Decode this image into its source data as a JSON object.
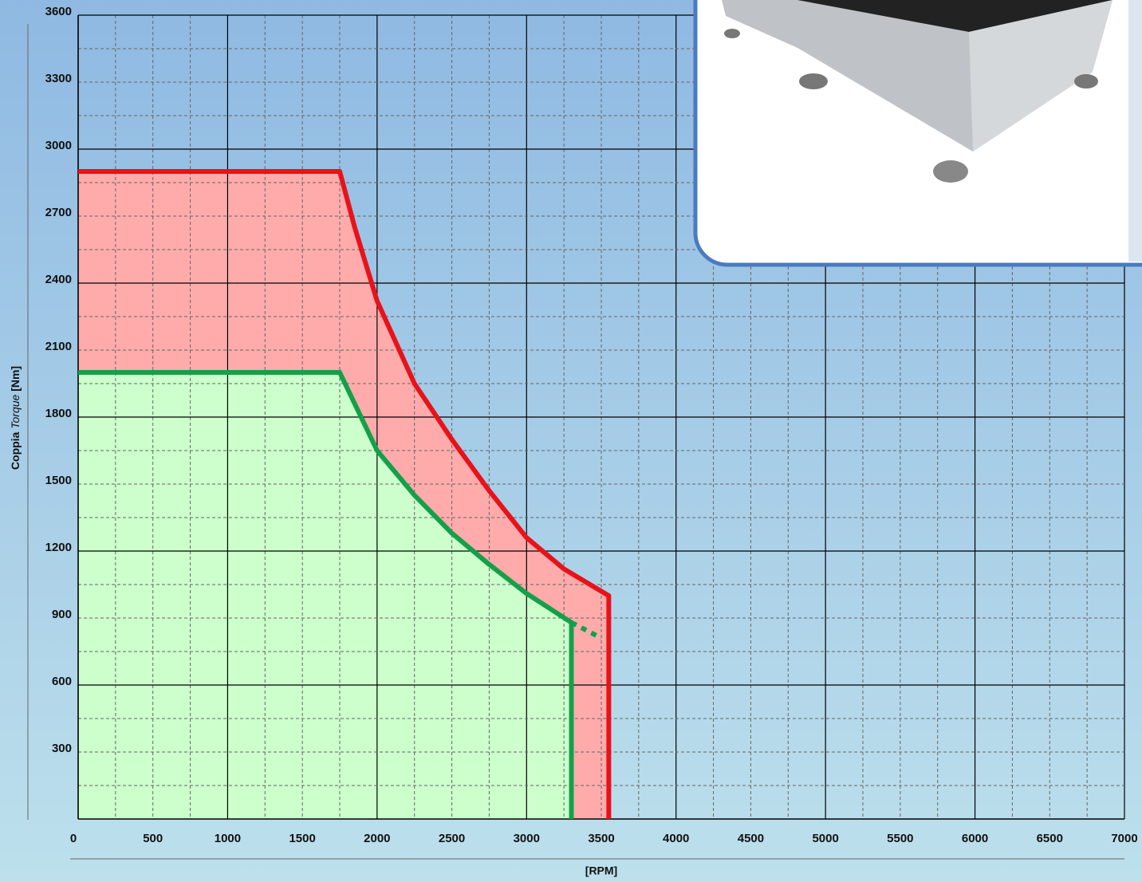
{
  "chart_data": {
    "type": "line",
    "ylabel": "Coppia",
    "ylabel_italic": "Torque",
    "ylabel_unit": "[Nm]",
    "xlabel": "[RPM]",
    "xlim": [
      0,
      7000
    ],
    "ylim": [
      0,
      3600
    ],
    "xticks": [
      0,
      500,
      1000,
      1500,
      2000,
      2500,
      3000,
      3500,
      4000,
      4500,
      5000,
      5500,
      6000,
      6500,
      7000
    ],
    "yticks": [
      300,
      600,
      900,
      1200,
      1500,
      1800,
      2100,
      2400,
      2700,
      3000,
      3300,
      3600
    ],
    "grid": true,
    "series": [
      {
        "color": "#e8121a",
        "fill": "#ffabab",
        "style": "solid",
        "x": [
          0,
          1750,
          1850,
          2000,
          2250,
          2500,
          2750,
          3000,
          3250,
          3550,
          3550
        ],
        "values": [
          2900,
          2900,
          2650,
          2320,
          1950,
          1700,
          1470,
          1260,
          1120,
          1000,
          0
        ]
      },
      {
        "color": "#14a04a",
        "fill": "#ccffcc",
        "style": "solid",
        "x": [
          0,
          1750,
          2000,
          2250,
          2500,
          2750,
          3000,
          3300,
          3300
        ],
        "values": [
          2000,
          2000,
          1650,
          1450,
          1280,
          1140,
          1010,
          880,
          0
        ]
      },
      {
        "color": "#14a04a",
        "style": "dotted",
        "x": [
          3300,
          3500
        ],
        "values": [
          880,
          810
        ]
      }
    ]
  }
}
